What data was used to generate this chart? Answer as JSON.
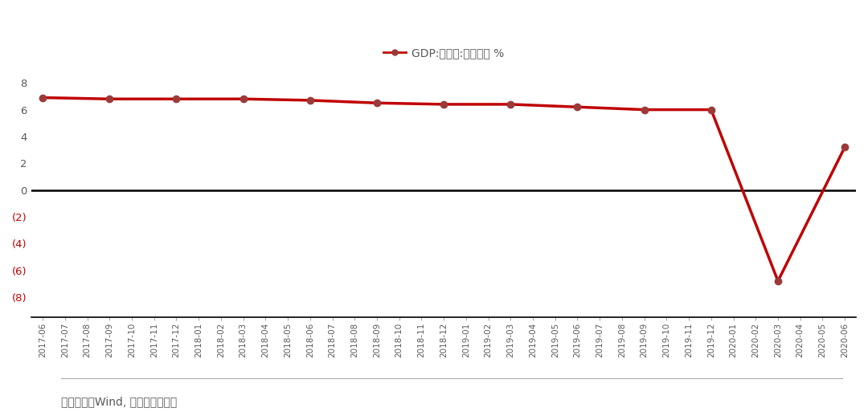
{
  "legend_label": "GDP:不变价:当季同比 %",
  "x_labels": [
    "2017-06",
    "2017-07",
    "2017-08",
    "2017-09",
    "2017-10",
    "2017-11",
    "2017-12",
    "2018-01",
    "2018-02",
    "2018-03",
    "2018-04",
    "2018-05",
    "2018-06",
    "2018-07",
    "2018-08",
    "2018-09",
    "2018-10",
    "2018-11",
    "2018-12",
    "2019-01",
    "2019-02",
    "2019-03",
    "2019-04",
    "2019-05",
    "2019-06",
    "2019-07",
    "2019-08",
    "2019-09",
    "2019-10",
    "2019-11",
    "2019-12",
    "2020-01",
    "2020-02",
    "2020-03",
    "2020-04",
    "2020-05",
    "2020-06"
  ],
  "values": [
    6.9,
    null,
    null,
    6.8,
    null,
    null,
    6.8,
    null,
    null,
    6.8,
    null,
    null,
    6.7,
    null,
    null,
    6.5,
    null,
    null,
    6.4,
    null,
    null,
    6.4,
    null,
    null,
    6.2,
    null,
    null,
    6.0,
    null,
    null,
    6.0,
    null,
    null,
    -6.8,
    null,
    null,
    3.2
  ],
  "line_color": "#C00000",
  "marker_color": "#9C3A3A",
  "zero_line_color": "#000000",
  "negative_tick_color": "#C00000",
  "positive_tick_color": "#595959",
  "background_color": "#FFFFFF",
  "yticks": [
    -8,
    -6,
    -4,
    -2,
    0,
    2,
    4,
    6,
    8
  ],
  "ylim": [
    -9.5,
    9
  ],
  "footer_text": "资料来源：Wind, 浙商证券研究所",
  "footer_color": "#595959"
}
